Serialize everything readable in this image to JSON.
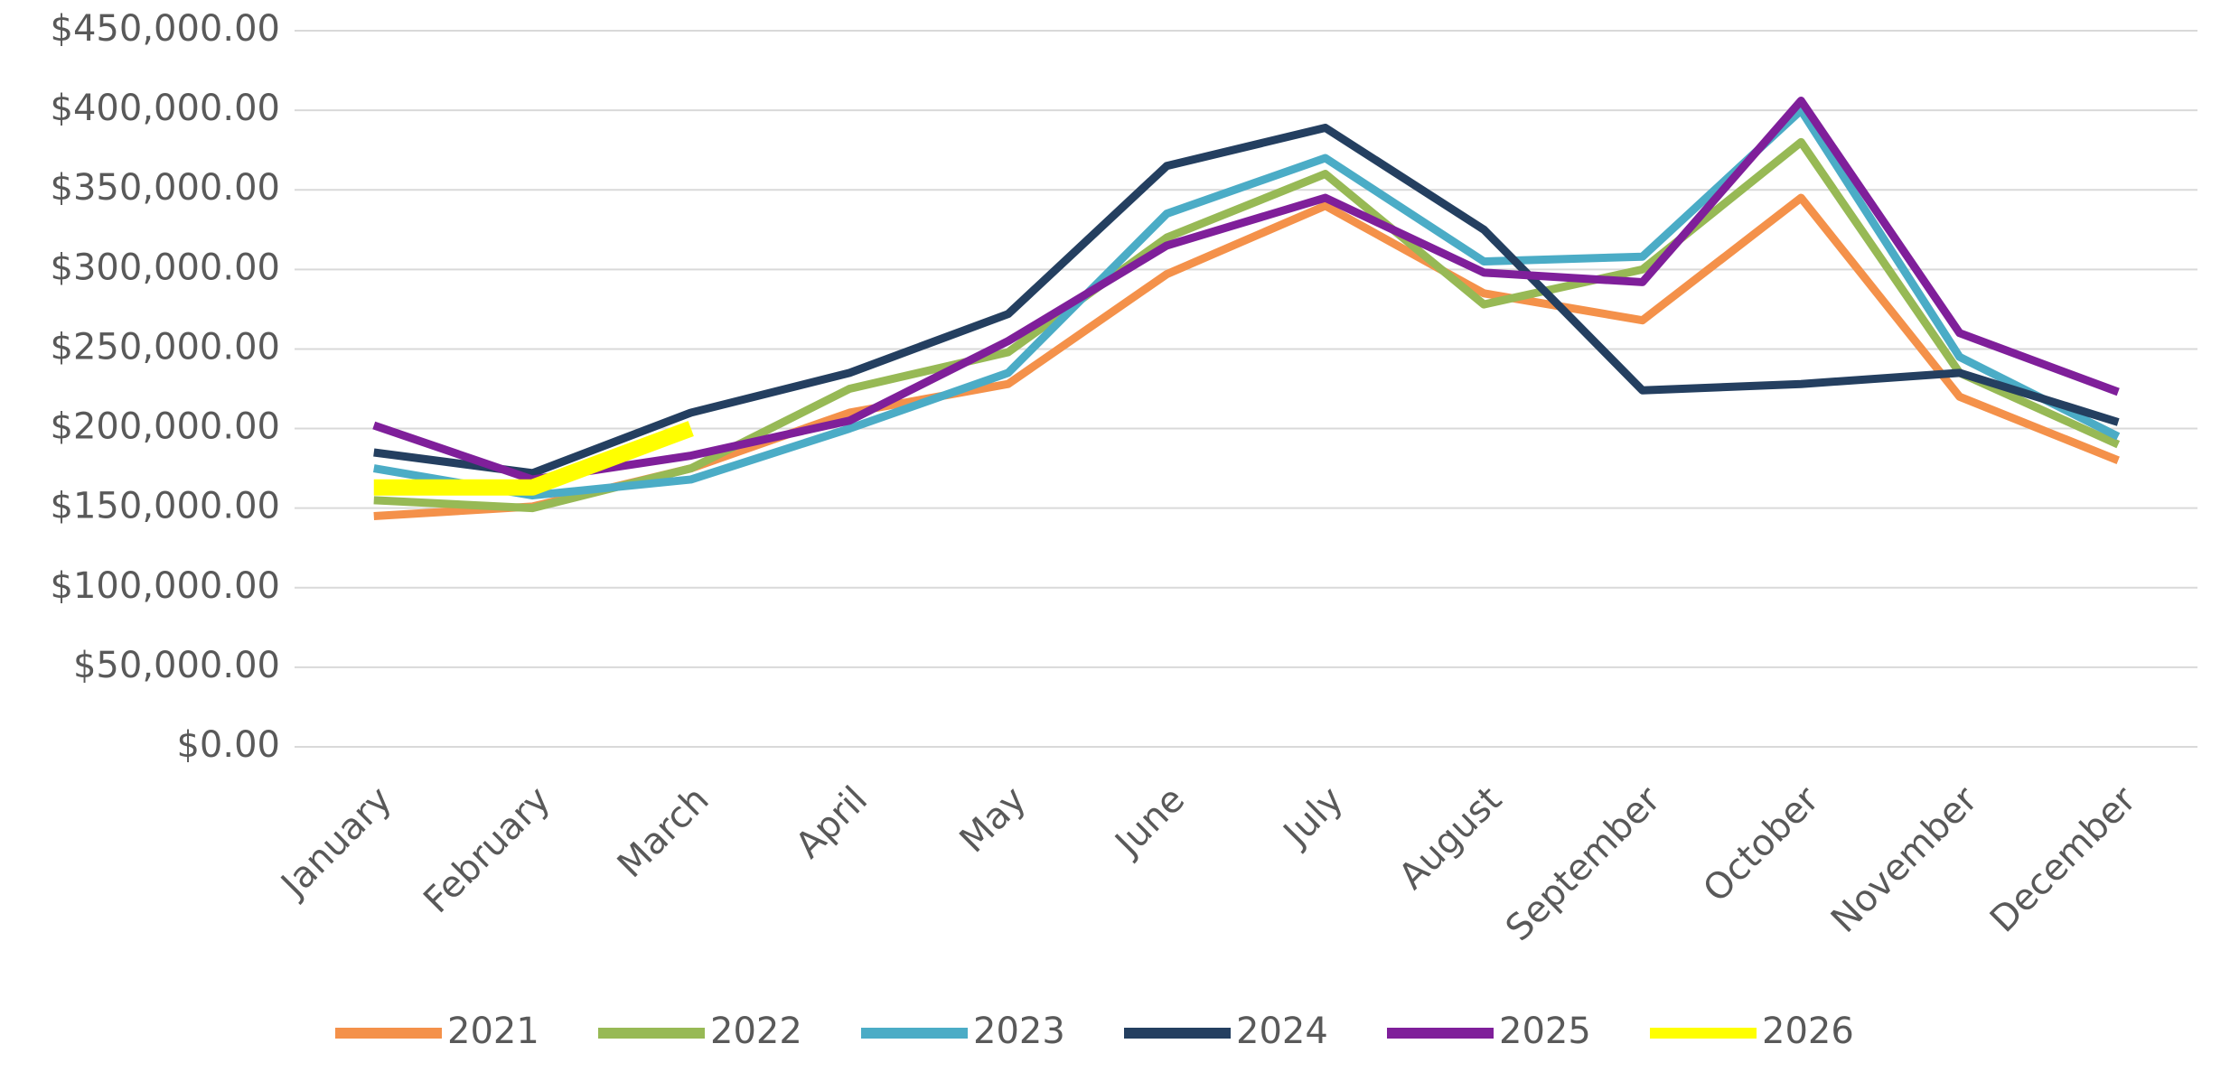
{
  "chart_data": {
    "type": "line",
    "categories": [
      "January",
      "February",
      "March",
      "April",
      "May",
      "June",
      "July",
      "August",
      "September",
      "October",
      "November",
      "December"
    ],
    "series": [
      {
        "name": "2021",
        "color": "#f4914a",
        "values": [
          145000,
          151000,
          175000,
          210000,
          228000,
          297000,
          340000,
          285000,
          268000,
          345000,
          220000,
          180000
        ]
      },
      {
        "name": "2022",
        "color": "#97b955",
        "values": [
          155000,
          150000,
          175000,
          225000,
          248000,
          320000,
          360000,
          278000,
          300000,
          380000,
          235000,
          190000
        ]
      },
      {
        "name": "2023",
        "color": "#4bacc6",
        "values": [
          175000,
          158000,
          168000,
          200000,
          235000,
          335000,
          370000,
          305000,
          308000,
          400000,
          245000,
          195000
        ]
      },
      {
        "name": "2024",
        "color": "#243f60",
        "values": [
          185000,
          172000,
          210000,
          235000,
          272000,
          365000,
          389000,
          325000,
          224000,
          228000,
          235000,
          204000
        ]
      },
      {
        "name": "2025",
        "color": "#7f1f9a",
        "values": [
          202000,
          168000,
          183000,
          205000,
          255000,
          315000,
          345000,
          298000,
          292000,
          406000,
          260000,
          223000
        ]
      },
      {
        "name": "2026",
        "color": "#ffff00",
        "values": [
          163000,
          163000,
          200000,
          null,
          null,
          null,
          null,
          null,
          null,
          null,
          null,
          null
        ]
      }
    ],
    "ylim": [
      0,
      450000
    ],
    "yticks": [
      {
        "value": 0,
        "label": "$0.00"
      },
      {
        "value": 50000,
        "label": "$50,000.00"
      },
      {
        "value": 100000,
        "label": "$100,000.00"
      },
      {
        "value": 150000,
        "label": "$150,000.00"
      },
      {
        "value": 200000,
        "label": "$200,000.00"
      },
      {
        "value": 250000,
        "label": "$250,000.00"
      },
      {
        "value": 300000,
        "label": "$300,000.00"
      },
      {
        "value": 350000,
        "label": "$350,000.00"
      },
      {
        "value": 400000,
        "label": "$400,000.00"
      },
      {
        "value": 450000,
        "label": "$450,000.00"
      }
    ],
    "grid": true,
    "legend": "bottom"
  }
}
